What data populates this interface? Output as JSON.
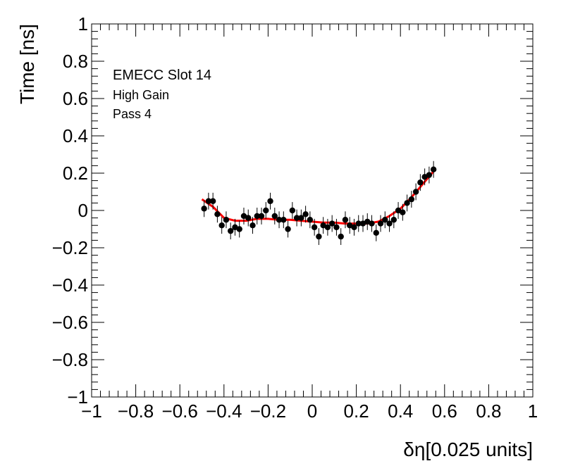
{
  "chart_data": {
    "type": "scatter",
    "xlabel": "δη[0.025 units]",
    "ylabel": "Time [ns]",
    "xlim": [
      -1,
      1
    ],
    "ylim": [
      -1,
      1
    ],
    "grid": false,
    "x_ticks": [
      -1,
      -0.8,
      -0.6,
      -0.4,
      -0.2,
      0,
      0.2,
      0.4,
      0.6,
      0.8,
      1
    ],
    "y_ticks": [
      -1,
      -0.8,
      -0.6,
      -0.4,
      -0.2,
      0,
      0.2,
      0.4,
      0.6,
      0.8,
      1
    ],
    "x_tick_labels": [
      "−1",
      "−0.8",
      "−0.6",
      "−0.4",
      "−0.2",
      "0",
      "0.2",
      "0.4",
      "0.6",
      "0.8",
      "1"
    ],
    "y_tick_labels": [
      "−1",
      "−0.8",
      "−0.6",
      "−0.4",
      "−0.2",
      "0",
      "0.2",
      "0.4",
      "0.6",
      "0.8",
      "1"
    ],
    "annotations": [
      "EMECC Slot 14",
      "High Gain",
      "Pass 4"
    ],
    "marker_color": "#000000",
    "fit_color": "#ff0000",
    "series": [
      {
        "kind": "points_with_errors",
        "x": [
          -0.49,
          -0.47,
          -0.45,
          -0.43,
          -0.41,
          -0.39,
          -0.37,
          -0.35,
          -0.33,
          -0.31,
          -0.29,
          -0.27,
          -0.25,
          -0.23,
          -0.21,
          -0.19,
          -0.17,
          -0.15,
          -0.13,
          -0.11,
          -0.09,
          -0.07,
          -0.05,
          -0.03,
          -0.01,
          0.01,
          0.03,
          0.05,
          0.07,
          0.09,
          0.11,
          0.13,
          0.15,
          0.17,
          0.19,
          0.21,
          0.23,
          0.25,
          0.27,
          0.29,
          0.31,
          0.33,
          0.35,
          0.37,
          0.39,
          0.41,
          0.43,
          0.45,
          0.47,
          0.49,
          0.51,
          0.53,
          0.55
        ],
        "y": [
          0.01,
          0.05,
          0.05,
          -0.02,
          -0.08,
          -0.05,
          -0.11,
          -0.09,
          -0.1,
          -0.03,
          -0.04,
          -0.08,
          -0.03,
          -0.03,
          0.0,
          0.05,
          -0.03,
          -0.05,
          -0.05,
          -0.1,
          0.0,
          -0.04,
          -0.04,
          -0.02,
          -0.05,
          -0.09,
          -0.14,
          -0.08,
          -0.09,
          -0.07,
          -0.09,
          -0.14,
          -0.05,
          -0.08,
          -0.09,
          -0.07,
          -0.07,
          -0.06,
          -0.07,
          -0.12,
          -0.07,
          -0.05,
          -0.07,
          -0.05,
          0.0,
          -0.01,
          0.04,
          0.06,
          0.1,
          0.15,
          0.18,
          0.19,
          0.22
        ],
        "error": 0.045
      },
      {
        "kind": "fit_curve",
        "x": [
          -0.5,
          -0.45,
          -0.4,
          -0.35,
          -0.3,
          -0.25,
          -0.2,
          -0.15,
          -0.1,
          -0.05,
          0.0,
          0.05,
          0.1,
          0.15,
          0.2,
          0.25,
          0.3,
          0.35,
          0.4,
          0.45,
          0.5,
          0.55
        ],
        "y": [
          0.06,
          0.02,
          -0.04,
          -0.055,
          -0.055,
          -0.045,
          -0.045,
          -0.05,
          -0.05,
          -0.055,
          -0.06,
          -0.065,
          -0.065,
          -0.07,
          -0.07,
          -0.07,
          -0.06,
          -0.03,
          0.01,
          0.07,
          0.14,
          0.21
        ]
      }
    ]
  }
}
